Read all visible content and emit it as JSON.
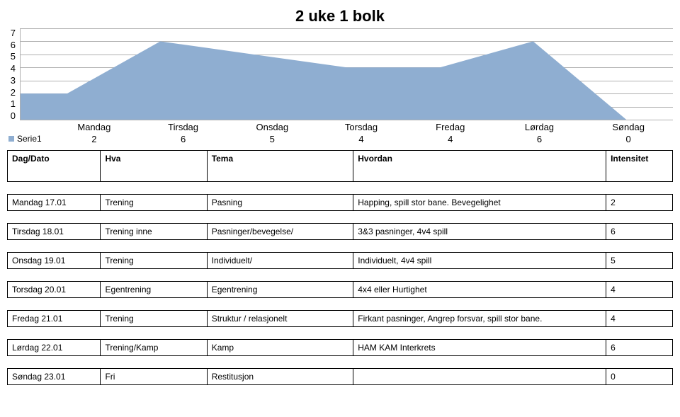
{
  "title": "2 uke 1 bolk",
  "chart": {
    "type": "area",
    "categories": [
      "Mandag",
      "Tirsdag",
      "Onsdag",
      "Torsdag",
      "Fredag",
      "Lørdag",
      "Søndag"
    ],
    "series_name": "Serie1",
    "values": [
      2,
      6,
      5,
      4,
      4,
      6,
      0
    ],
    "fill_color": "#8faed1",
    "ylim": [
      0,
      7
    ],
    "ytick_step": 1,
    "grid_color": "#b0b0b0",
    "background_color": "#ffffff",
    "title_fontsize": 22,
    "label_fontsize": 13
  },
  "header": {
    "dag": "Dag/Dato",
    "hva": "Hva",
    "tema": "Tema",
    "hvordan": "Hvordan",
    "intensitet": "Intensitet"
  },
  "rows": [
    {
      "dag": "Mandag 17.01",
      "hva": "Trening",
      "tema": "Pasning",
      "hvordan": "Happing, spill stor bane. Bevegelighet",
      "int": "2"
    },
    {
      "dag": "Tirsdag 18.01",
      "hva": "Trening inne",
      "tema": "Pasninger/bevegelse/",
      "hvordan": "3&3 pasninger, 4v4 spill",
      "int": "6"
    },
    {
      "dag": "Onsdag 19.01",
      "hva": "Trening",
      "tema": "Individuelt/",
      "hvordan": "Individuelt, 4v4 spill",
      "int": "5"
    },
    {
      "dag": "Torsdag 20.01",
      "hva": "Egentrening",
      "tema": "Egentrening",
      "hvordan": "4x4 eller Hurtighet",
      "int": "4"
    },
    {
      "dag": "Fredag 21.01",
      "hva": "Trening",
      "tema": "Struktur / relasjonelt",
      "hvordan": "Firkant pasninger, Angrep forsvar, spill stor bane.",
      "int": "4"
    },
    {
      "dag": "Lørdag 22.01",
      "hva": "Trening/Kamp",
      "tema": "Kamp",
      "hvordan": "HAM KAM Interkrets",
      "int": "6"
    },
    {
      "dag": "Søndag 23.01",
      "hva": "Fri",
      "tema": "Restitusjon",
      "hvordan": "",
      "int": "0"
    }
  ]
}
